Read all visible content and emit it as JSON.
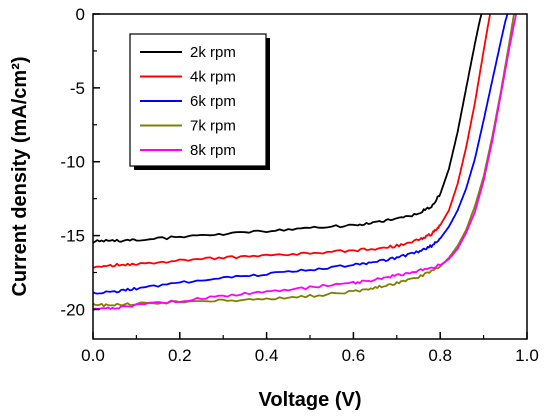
{
  "chart_data": {
    "type": "line",
    "title": "",
    "xlabel": "Voltage (V)",
    "ylabel": "Current density (mA/cm²)",
    "xlim": [
      0.0,
      1.0
    ],
    "ylim": [
      -22,
      0
    ],
    "xticks": [
      0.0,
      0.2,
      0.4,
      0.6,
      0.8,
      1.0
    ],
    "xtick_labels": [
      "0.0",
      "0.2",
      "0.4",
      "0.6",
      "0.8",
      "1.0"
    ],
    "yticks": [
      0,
      -5,
      -10,
      -15,
      -20
    ],
    "ytick_labels": [
      "0",
      "-5",
      "-10",
      "-15",
      "-20"
    ],
    "grid": false,
    "legend_position": "top-left",
    "series": [
      {
        "name": "2k rpm",
        "color": "#000000",
        "x": [
          0.0,
          0.05,
          0.1,
          0.2,
          0.3,
          0.4,
          0.5,
          0.6,
          0.65,
          0.7,
          0.75,
          0.78,
          0.8,
          0.82,
          0.84,
          0.86,
          0.88,
          0.89,
          0.895
        ],
        "y": [
          -15.4,
          -15.35,
          -15.3,
          -15.1,
          -14.9,
          -14.7,
          -14.5,
          -14.3,
          -14.1,
          -13.9,
          -13.5,
          -13.0,
          -12.2,
          -10.5,
          -8.0,
          -5.0,
          -2.0,
          -0.6,
          0.0
        ]
      },
      {
        "name": "4k rpm",
        "color": "#ff0000",
        "x": [
          0.0,
          0.05,
          0.1,
          0.2,
          0.3,
          0.4,
          0.5,
          0.6,
          0.65,
          0.7,
          0.75,
          0.78,
          0.8,
          0.82,
          0.84,
          0.86,
          0.88,
          0.9,
          0.91,
          0.915
        ],
        "y": [
          -17.1,
          -17.0,
          -16.9,
          -16.7,
          -16.5,
          -16.35,
          -16.2,
          -16.0,
          -15.9,
          -15.7,
          -15.3,
          -14.9,
          -14.3,
          -13.3,
          -11.5,
          -9.0,
          -6.0,
          -2.5,
          -0.8,
          0.0
        ]
      },
      {
        "name": "6k rpm",
        "color": "#0000ff",
        "x": [
          0.0,
          0.05,
          0.1,
          0.2,
          0.3,
          0.4,
          0.5,
          0.6,
          0.65,
          0.7,
          0.75,
          0.78,
          0.8,
          0.82,
          0.84,
          0.86,
          0.88,
          0.9,
          0.92,
          0.94,
          0.95,
          0.955
        ],
        "y": [
          -18.9,
          -18.8,
          -18.6,
          -18.2,
          -17.9,
          -17.6,
          -17.3,
          -17.0,
          -16.8,
          -16.5,
          -16.1,
          -15.7,
          -15.2,
          -14.4,
          -13.3,
          -11.8,
          -9.8,
          -7.2,
          -4.5,
          -1.8,
          -0.5,
          0.0
        ]
      },
      {
        "name": "7k rpm",
        "color": "#808000",
        "x": [
          0.0,
          0.05,
          0.1,
          0.2,
          0.3,
          0.4,
          0.5,
          0.6,
          0.65,
          0.7,
          0.75,
          0.8,
          0.82,
          0.84,
          0.86,
          0.88,
          0.9,
          0.92,
          0.94,
          0.96,
          0.97
        ],
        "y": [
          -19.7,
          -19.7,
          -19.6,
          -19.5,
          -19.4,
          -19.3,
          -19.1,
          -18.8,
          -18.5,
          -18.2,
          -17.8,
          -17.1,
          -16.5,
          -15.7,
          -14.6,
          -13.0,
          -11.0,
          -8.3,
          -5.2,
          -1.8,
          0.0
        ]
      },
      {
        "name": "8k rpm",
        "color": "#ff00ff",
        "x": [
          0.0,
          0.05,
          0.1,
          0.2,
          0.3,
          0.4,
          0.5,
          0.6,
          0.65,
          0.7,
          0.75,
          0.8,
          0.82,
          0.84,
          0.86,
          0.88,
          0.9,
          0.92,
          0.94,
          0.96,
          0.975
        ],
        "y": [
          -20.0,
          -19.9,
          -19.7,
          -19.4,
          -19.1,
          -18.8,
          -18.5,
          -18.2,
          -18.0,
          -17.7,
          -17.4,
          -17.0,
          -16.6,
          -15.9,
          -14.8,
          -13.4,
          -11.3,
          -8.6,
          -5.4,
          -2.2,
          0.0
        ]
      }
    ]
  }
}
